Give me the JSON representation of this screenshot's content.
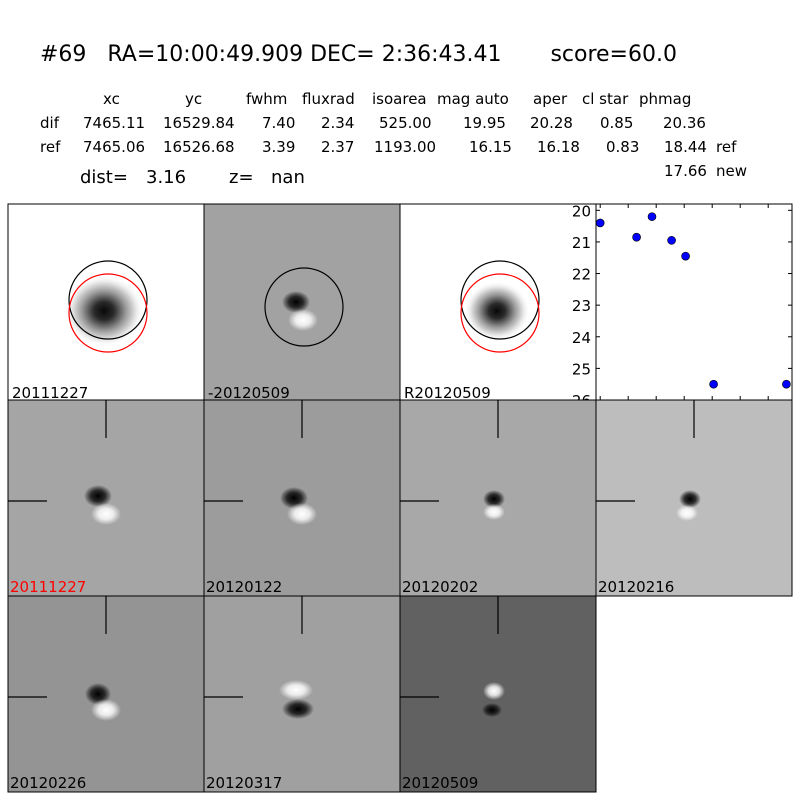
{
  "header": {
    "title": "#69   RA=10:00:49.909 DEC= 2:36:43.41       score=60.0",
    "columns": [
      "xc",
      "yc",
      "fwhm",
      "fluxrad",
      "isoarea",
      "mag auto",
      "aper",
      "cl star",
      "phmag"
    ],
    "rows": [
      {
        "label": "dif",
        "values": [
          "7465.11",
          "16529.84",
          "7.40",
          "2.34",
          "525.00",
          "19.95",
          "20.28",
          "0.85",
          "20.36"
        ],
        "suffix": ""
      },
      {
        "label": "ref",
        "values": [
          "7465.06",
          "16526.68",
          "3.39",
          "2.37",
          "1193.00",
          "16.15",
          "16.18",
          "0.83",
          "18.44"
        ],
        "suffix": "ref"
      }
    ],
    "extra_phmag": "17.66",
    "extra_suffix": "new",
    "dist_label": "dist=",
    "dist_value": "3.16",
    "z_label": "z=",
    "z_value": "nan"
  },
  "panels": [
    {
      "label": "20111227",
      "label_color": "#000000"
    },
    {
      "label": "-20120509",
      "label_color": "#000000"
    },
    {
      "label": "R20120509",
      "label_color": "#000000"
    },
    {
      "label": "20111227",
      "label_color": "#ff0000"
    },
    {
      "label": "20120122",
      "label_color": "#000000"
    },
    {
      "label": "20120202",
      "label_color": "#000000"
    },
    {
      "label": "20120216",
      "label_color": "#000000"
    },
    {
      "label": "20120226",
      "label_color": "#000000"
    },
    {
      "label": "20120317",
      "label_color": "#000000"
    },
    {
      "label": "20120509",
      "label_color": "#000000"
    }
  ],
  "chart_data": {
    "type": "scatter",
    "x": [
      0,
      26,
      37,
      51,
      61,
      81,
      133
    ],
    "y": [
      20.4,
      20.85,
      20.2,
      20.95,
      21.45,
      25.5,
      25.5
    ],
    "xlim": [
      -3,
      137
    ],
    "ylim": [
      26,
      19.8
    ],
    "xticks": [
      0,
      20,
      40,
      60,
      80,
      100,
      120
    ],
    "yticks": [
      20,
      21,
      22,
      23,
      24,
      25,
      26
    ],
    "marker_color": "#0000ff",
    "title": "",
    "xlabel": "",
    "ylabel": ""
  }
}
